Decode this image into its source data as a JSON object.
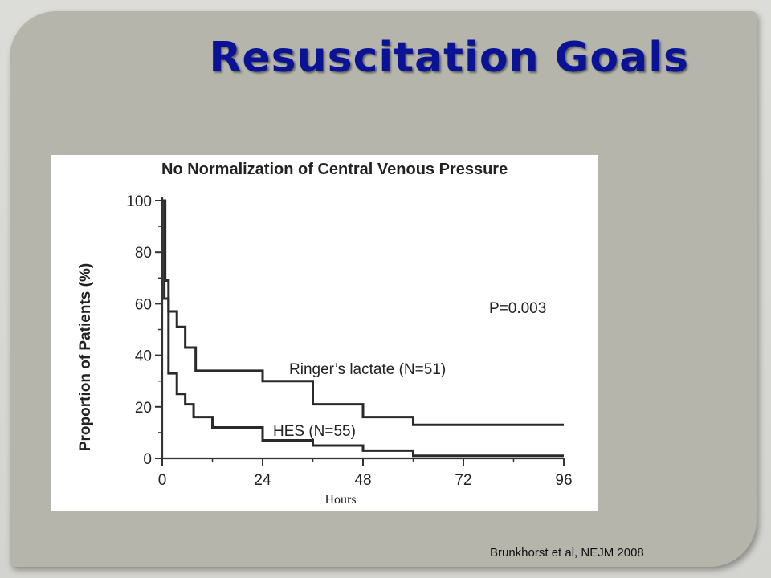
{
  "slide": {
    "title": "Resuscitation Goals",
    "citation": "Brunkhorst et al, NEJM 2008",
    "title_color": "#0a1296",
    "panel_color": "#b5b5ac"
  },
  "chart_data": {
    "type": "line",
    "title": "No Normalization of Central Venous Pressure",
    "xlabel": "Hours",
    "ylabel": "Proportion of Patients (%)",
    "xlim": [
      0,
      96
    ],
    "ylim": [
      0,
      100
    ],
    "xticks": [
      0,
      24,
      48,
      72,
      96
    ],
    "yticks": [
      0,
      20,
      40,
      60,
      80,
      100
    ],
    "step": true,
    "grid": false,
    "annotation": "P=0.003",
    "series": [
      {
        "name": "Ringer’s lactate (N=51)",
        "x": [
          0,
          0.7,
          1.5,
          3.5,
          5.5,
          8,
          24,
          36,
          48,
          60,
          96
        ],
        "y": [
          100,
          69,
          57,
          51,
          43,
          34,
          30,
          21,
          16,
          13,
          13
        ]
      },
      {
        "name": "HES (N=55)",
        "x": [
          0,
          0.5,
          1.5,
          3.5,
          5.5,
          7.5,
          12,
          24,
          36,
          48,
          60,
          96
        ],
        "y": [
          100,
          62,
          33,
          25,
          21,
          16,
          12,
          7,
          5,
          3,
          1,
          1
        ]
      }
    ]
  }
}
